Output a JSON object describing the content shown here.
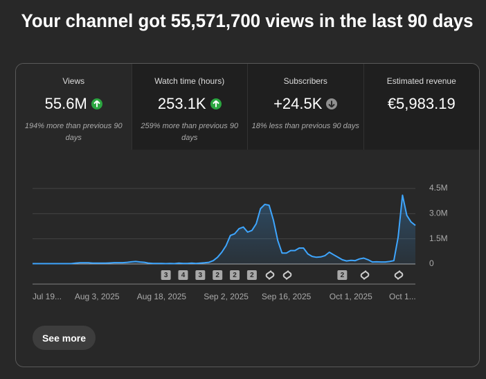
{
  "header": {
    "title": "Your channel got 55,571,700 views in the last 90 days"
  },
  "metrics": [
    {
      "label": "Views",
      "value": "55.6M",
      "trend": "up",
      "note": "194% more than previous 90 days"
    },
    {
      "label": "Watch time (hours)",
      "value": "253.1K",
      "trend": "up",
      "note": "259% more than previous 90 days"
    },
    {
      "label": "Subscribers",
      "value": "+24.5K",
      "trend": "down",
      "note": "18% less than previous 90 days"
    },
    {
      "label": "Estimated revenue",
      "value": "€5,983.19"
    }
  ],
  "chart_data": {
    "type": "line",
    "color": "#3ea6ff",
    "categories": [
      "Jul 19...",
      null,
      null,
      null,
      null,
      null,
      null,
      null,
      null,
      null,
      null,
      null,
      null,
      null,
      null,
      "Aug 3, 2025",
      null,
      null,
      null,
      null,
      null,
      null,
      null,
      null,
      null,
      null,
      null,
      null,
      null,
      null,
      "Aug 18, 2025",
      null,
      null,
      null,
      null,
      null,
      null,
      null,
      null,
      null,
      null,
      null,
      null,
      null,
      null,
      "Sep 2, 2025",
      null,
      null,
      null,
      null,
      null,
      null,
      null,
      null,
      null,
      null,
      null,
      null,
      null,
      "Sep 16, 2025",
      null,
      null,
      null,
      null,
      null,
      null,
      null,
      null,
      null,
      null,
      null,
      null,
      null,
      null,
      "Oct 1, 2025",
      null,
      null,
      null,
      null,
      null,
      null,
      null,
      null,
      null,
      null,
      null,
      "Oct 1...",
      null,
      null,
      null
    ],
    "values": [
      20000,
      20000,
      20000,
      20000,
      20000,
      20000,
      20000,
      20000,
      20000,
      20000,
      50000,
      70000,
      70000,
      70000,
      50000,
      50000,
      50000,
      50000,
      60000,
      80000,
      80000,
      80000,
      100000,
      130000,
      150000,
      120000,
      100000,
      50000,
      30000,
      30000,
      30000,
      20000,
      30000,
      20000,
      50000,
      30000,
      30000,
      50000,
      30000,
      50000,
      70000,
      100000,
      200000,
      400000,
      700000,
      1100000,
      1700000,
      1800000,
      2100000,
      2200000,
      1900000,
      2000000,
      2400000,
      3300000,
      3550000,
      3500000,
      2600000,
      1400000,
      650000,
      650000,
      800000,
      800000,
      950000,
      950000,
      600000,
      450000,
      400000,
      420000,
      500000,
      700000,
      550000,
      400000,
      250000,
      180000,
      220000,
      200000,
      300000,
      350000,
      250000,
      120000,
      130000,
      120000,
      120000,
      150000,
      200000,
      1600000,
      4100000,
      2900000,
      2500000,
      2300000
    ],
    "event_markers": [
      null,
      null,
      null,
      null,
      null,
      null,
      null,
      null,
      null,
      null,
      null,
      null,
      null,
      null,
      null,
      null,
      null,
      null,
      null,
      null,
      null,
      null,
      null,
      null,
      null,
      null,
      null,
      null,
      null,
      null,
      null,
      "3",
      null,
      null,
      null,
      "4",
      null,
      null,
      null,
      "3",
      null,
      null,
      null,
      "2",
      null,
      null,
      null,
      "2",
      null,
      null,
      null,
      "2",
      null,
      null,
      null,
      null,
      null,
      null,
      null,
      null,
      null,
      null,
      null,
      null,
      null,
      null,
      null,
      null,
      null,
      null,
      null,
      null,
      "2",
      null,
      null,
      null,
      null,
      null,
      null,
      null,
      null,
      null,
      null,
      null,
      null,
      null,
      null,
      null,
      null,
      null
    ],
    "ylim": [
      0,
      4500000
    ],
    "yticks": [
      0,
      {
        "value": 1500000,
        "label": "1.5M"
      },
      {
        "value": 3000000,
        "label": "3.0M"
      },
      {
        "value": 4500000,
        "label": "4.5M"
      }
    ],
    "grid": true
  },
  "button": {
    "label": "See more"
  }
}
